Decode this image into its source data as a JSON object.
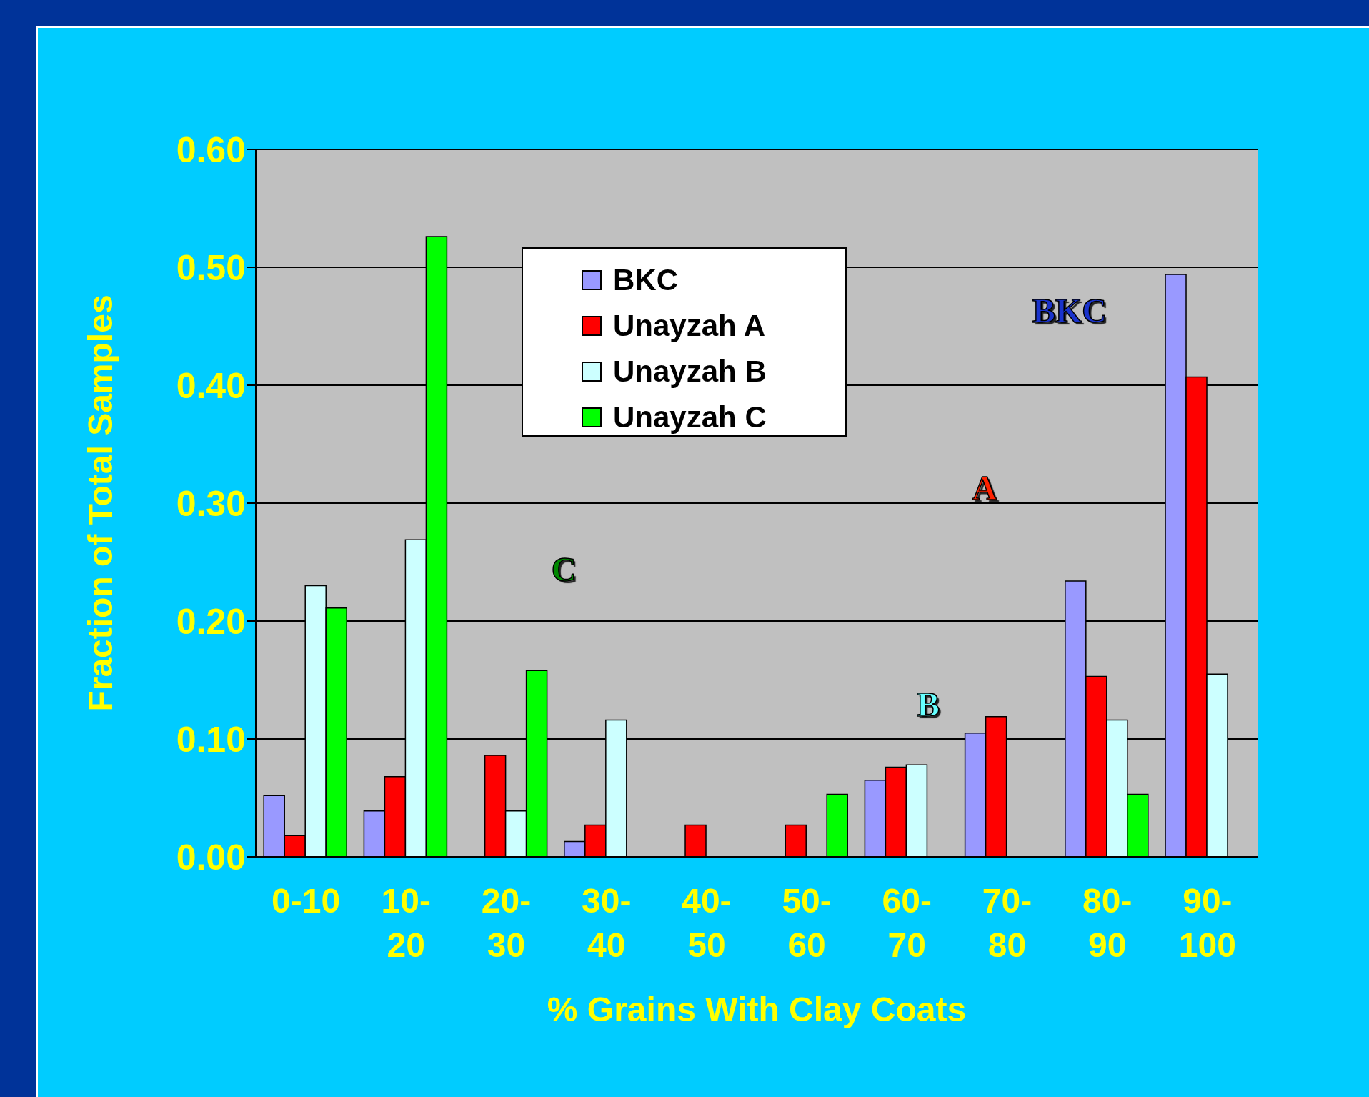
{
  "chart_data": {
    "type": "bar",
    "xlabel": "% Grains With Clay Coats",
    "ylabel": "Fraction of Total Samples",
    "categories": [
      "0-10",
      "10-20",
      "20-30",
      "30-40",
      "40-50",
      "50-60",
      "60-70",
      "70-80",
      "80-90",
      "90-100"
    ],
    "series": [
      {
        "name": "BKC",
        "color": "#9999ff",
        "values": [
          0.052,
          0.039,
          0,
          0.013,
          0,
          0,
          0.065,
          0.105,
          0.234,
          0.494
        ]
      },
      {
        "name": "Unayzah A",
        "color": "#ff0000",
        "values": [
          0.018,
          0.068,
          0.086,
          0.027,
          0.027,
          0.027,
          0.076,
          0.119,
          0.153,
          0.407
        ]
      },
      {
        "name": "Unayzah B",
        "color": "#ccffff",
        "values": [
          0.23,
          0.269,
          0.039,
          0.116,
          0,
          0,
          0.078,
          0,
          0.116,
          0.155
        ]
      },
      {
        "name": "Unayzah C",
        "color": "#00ff00",
        "values": [
          0.211,
          0.526,
          0.158,
          0,
          0,
          0.053,
          0,
          0,
          0.053,
          0
        ]
      }
    ],
    "annotations": [
      "BKC",
      "A",
      "B",
      "C"
    ],
    "ylim": [
      0,
      0.6
    ],
    "yticks": [
      {
        "value": 0,
        "label": "0.00"
      },
      {
        "value": 0.1,
        "label": "0.10"
      },
      {
        "value": 0.2,
        "label": "0.20"
      },
      {
        "value": 0.3,
        "label": "0.30"
      },
      {
        "value": 0.4,
        "label": "0.40"
      },
      {
        "value": 0.5,
        "label": "0.50"
      },
      {
        "value": 0.6,
        "label": "0.60"
      }
    ],
    "grid": "y",
    "legend": "top"
  }
}
